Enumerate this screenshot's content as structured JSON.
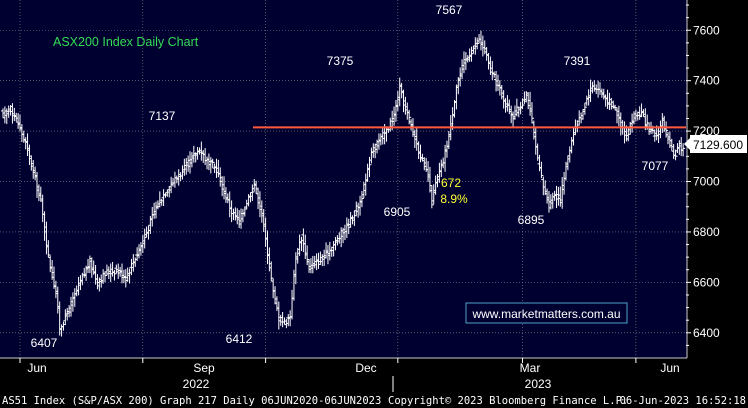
{
  "chart_data": {
    "type": "ohlc",
    "title": "ASX200 Index Daily Chart",
    "source_link": "www.marketmatters.com.au",
    "last_price_label": "7129.600",
    "ylim": [
      6300,
      7720
    ],
    "y_ticks": [
      6400,
      6600,
      6800,
      7000,
      7200,
      7400,
      7600
    ],
    "y_tick_labels": [
      "6400",
      "6600",
      "6800",
      "7000",
      "7200",
      "7400",
      "7600"
    ],
    "x_month_labels": [
      "Jun",
      "Sep",
      "Dec",
      "Mar",
      "Jun"
    ],
    "x_year_labels": [
      "2022",
      "2023"
    ],
    "grid": true,
    "horizontal_line": {
      "value": 7215,
      "color": "#ff5a3c"
    },
    "annotations": [
      {
        "label": "6407",
        "color": "#ffffff"
      },
      {
        "label": "7137",
        "color": "#ffffff"
      },
      {
        "label": "6412",
        "color": "#ffffff"
      },
      {
        "label": "7375",
        "color": "#ffffff"
      },
      {
        "label": "6905",
        "color": "#ffffff"
      },
      {
        "label": "7567",
        "color": "#ffffff"
      },
      {
        "label": "672",
        "color": "#ffff33"
      },
      {
        "label": "8.9%",
        "color": "#ffff33"
      },
      {
        "label": "6895",
        "color": "#ffffff"
      },
      {
        "label": "7391",
        "color": "#ffffff"
      },
      {
        "label": "7077",
        "color": "#ffffff"
      }
    ],
    "series": [
      {
        "close_path": [
          [
            0,
            7260
          ],
          [
            4,
            7290
          ],
          [
            8,
            7230
          ],
          [
            12,
            7150
          ],
          [
            16,
            7040
          ],
          [
            20,
            6920
          ],
          [
            24,
            6700
          ],
          [
            28,
            6560
          ],
          [
            30,
            6420
          ],
          [
            33,
            6460
          ],
          [
            37,
            6530
          ],
          [
            42,
            6620
          ],
          [
            46,
            6680
          ],
          [
            50,
            6600
          ],
          [
            55,
            6640
          ],
          [
            60,
            6650
          ],
          [
            65,
            6620
          ],
          [
            70,
            6700
          ],
          [
            75,
            6780
          ],
          [
            80,
            6880
          ],
          [
            85,
            6950
          ],
          [
            90,
            7000
          ],
          [
            95,
            7040
          ],
          [
            100,
            7090
          ],
          [
            104,
            7130
          ],
          [
            108,
            7080
          ],
          [
            113,
            7050
          ],
          [
            117,
            6960
          ],
          [
            121,
            6880
          ],
          [
            125,
            6840
          ],
          [
            129,
            6920
          ],
          [
            133,
            6990
          ],
          [
            137,
            6870
          ],
          [
            140,
            6720
          ],
          [
            143,
            6560
          ],
          [
            146,
            6460
          ],
          [
            149,
            6440
          ],
          [
            152,
            6470
          ],
          [
            155,
            6700
          ],
          [
            158,
            6780
          ],
          [
            162,
            6660
          ],
          [
            166,
            6680
          ],
          [
            170,
            6700
          ],
          [
            174,
            6740
          ],
          [
            178,
            6780
          ],
          [
            182,
            6820
          ],
          [
            185,
            6860
          ],
          [
            189,
            6920
          ],
          [
            192,
            7000
          ],
          [
            195,
            7120
          ],
          [
            199,
            7160
          ],
          [
            203,
            7200
          ],
          [
            207,
            7260
          ],
          [
            210,
            7370
          ],
          [
            213,
            7290
          ],
          [
            216,
            7220
          ],
          [
            219,
            7150
          ],
          [
            222,
            7080
          ],
          [
            225,
            7020
          ],
          [
            227,
            6920
          ],
          [
            229,
            6990
          ],
          [
            233,
            7080
          ],
          [
            237,
            7220
          ],
          [
            240,
            7380
          ],
          [
            244,
            7470
          ],
          [
            248,
            7520
          ],
          [
            252,
            7560
          ],
          [
            255,
            7520
          ],
          [
            258,
            7440
          ],
          [
            262,
            7380
          ],
          [
            266,
            7310
          ],
          [
            270,
            7260
          ],
          [
            274,
            7300
          ],
          [
            277,
            7350
          ],
          [
            280,
            7240
          ],
          [
            283,
            7080
          ],
          [
            286,
            6980
          ],
          [
            289,
            6910
          ],
          [
            292,
            6950
          ],
          [
            295,
            6930
          ],
          [
            298,
            7060
          ],
          [
            302,
            7200
          ],
          [
            306,
            7260
          ],
          [
            309,
            7330
          ],
          [
            312,
            7380
          ],
          [
            316,
            7360
          ],
          [
            320,
            7320
          ],
          [
            324,
            7290
          ],
          [
            327,
            7230
          ],
          [
            330,
            7180
          ],
          [
            334,
            7260
          ],
          [
            338,
            7270
          ],
          [
            342,
            7200
          ],
          [
            346,
            7180
          ],
          [
            349,
            7240
          ],
          [
            352,
            7170
          ],
          [
            355,
            7100
          ],
          [
            358,
            7140
          ],
          [
            360,
            7129.6
          ]
        ]
      }
    ]
  },
  "footer": {
    "left": "AS51 Index (S&P/ASX 200) Graph 217  Daily 06JUN2020-06JUN2023",
    "center": "Copyright© 2023 Bloomberg Finance L.P.",
    "right": "06-Jun-2023 16:52:18"
  },
  "colors": {
    "background": "#000030",
    "grid": "#8a8a8a",
    "bars": "#ffffff",
    "resistance_line": "#ff5a3c",
    "title": "#33dd55",
    "link": "#ffffff",
    "highlight": "#ffff33"
  }
}
